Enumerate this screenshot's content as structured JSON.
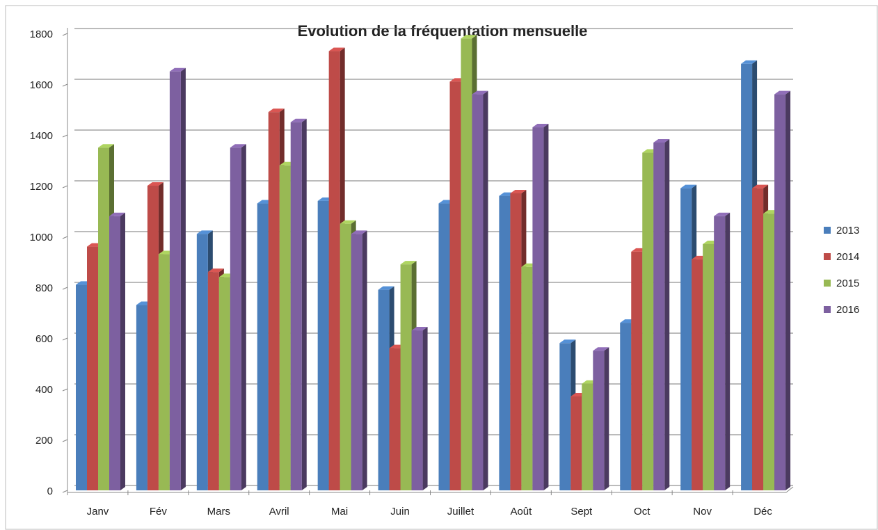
{
  "chart_data": {
    "type": "bar",
    "title": "Evolution de la fréquentation mensuelle",
    "categories": [
      "Janv",
      "Fév",
      "Mars",
      "Avril",
      "Mai",
      "Juin",
      "Juillet",
      "Août",
      "Sept",
      "Oct",
      "Nov",
      "Déc"
    ],
    "series": [
      {
        "name": "2013",
        "color": "#4a7ebb",
        "values": [
          810,
          730,
          1010,
          1130,
          1140,
          790,
          1130,
          1160,
          580,
          660,
          1190,
          1680
        ]
      },
      {
        "name": "2014",
        "color": "#be4b48",
        "values": [
          960,
          1200,
          860,
          1490,
          1730,
          560,
          1610,
          1170,
          370,
          940,
          910,
          1190
        ]
      },
      {
        "name": "2015",
        "color": "#98b954",
        "values": [
          1350,
          930,
          840,
          1280,
          1050,
          890,
          1780,
          880,
          420,
          1330,
          970,
          1090
        ]
      },
      {
        "name": "2016",
        "color": "#7d60a0",
        "values": [
          1080,
          1650,
          1350,
          1450,
          1010,
          630,
          1560,
          1430,
          550,
          1370,
          1080,
          1560
        ]
      }
    ],
    "ylim": [
      0,
      1800
    ],
    "yticks": [
      0,
      200,
      400,
      600,
      800,
      1000,
      1200,
      1400,
      1600,
      1800
    ],
    "grid": true,
    "legend": "right"
  }
}
